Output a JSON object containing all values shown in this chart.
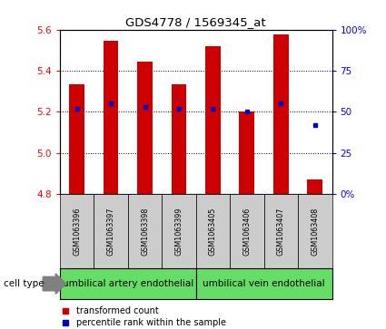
{
  "title": "GDS4778 / 1569345_at",
  "samples": [
    "GSM1063396",
    "GSM1063397",
    "GSM1063398",
    "GSM1063399",
    "GSM1063405",
    "GSM1063406",
    "GSM1063407",
    "GSM1063408"
  ],
  "red_values": [
    5.335,
    5.545,
    5.445,
    5.335,
    5.52,
    5.2,
    5.575,
    4.87
  ],
  "blue_values": [
    52,
    55,
    53,
    52,
    52,
    50,
    55,
    42
  ],
  "y_min": 4.8,
  "y_max": 5.6,
  "y_ticks": [
    4.8,
    5.0,
    5.2,
    5.4,
    5.6
  ],
  "y2_ticks": [
    0,
    25,
    50,
    75,
    100
  ],
  "y2_labels": [
    "0%",
    "25",
    "50",
    "75",
    "100%"
  ],
  "cell_type_groups": [
    {
      "label": "umbilical artery endothelial",
      "start": 0,
      "end": 3
    },
    {
      "label": "umbilical vein endothelial",
      "start": 4,
      "end": 7
    }
  ],
  "bar_color": "#cc0000",
  "dot_color": "#0000cc",
  "bar_bottom": 4.8,
  "bar_width": 0.45,
  "legend_red_label": "transformed count",
  "legend_blue_label": "percentile rank within the sample",
  "cell_type_label": "cell type",
  "group_bg_color": "#66dd66",
  "sample_bg_color": "#cccccc",
  "white_bg": "#ffffff"
}
